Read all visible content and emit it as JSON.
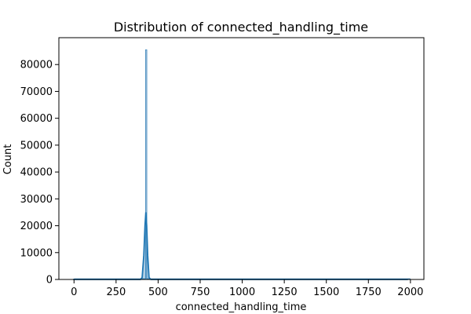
{
  "chart_data": {
    "type": "histogram",
    "title": "Distribution of connected_handling_time",
    "xlabel": "connected_handling_time",
    "ylabel": "Count",
    "xlim": [
      -90,
      2080
    ],
    "ylim": [
      0,
      90000
    ],
    "xticks": [
      0,
      250,
      500,
      750,
      1000,
      1250,
      1500,
      1750,
      2000
    ],
    "yticks": [
      0,
      10000,
      20000,
      30000,
      40000,
      50000,
      60000,
      70000,
      80000
    ],
    "bars": [
      {
        "x_start": 425,
        "x_end": 433,
        "count": 85500
      }
    ],
    "kde": {
      "x": [
        -5,
        395,
        405,
        415,
        422,
        427,
        432,
        438,
        446,
        457,
        1985
      ],
      "y": [
        0,
        0,
        700,
        9000,
        20000,
        25000,
        20000,
        9000,
        700,
        0,
        0
      ]
    },
    "grid": false,
    "colors": {
      "bar_fill": "#a6c3dd",
      "bar_edge": "#1f77b4",
      "kde_line": "#1f77b4"
    }
  }
}
